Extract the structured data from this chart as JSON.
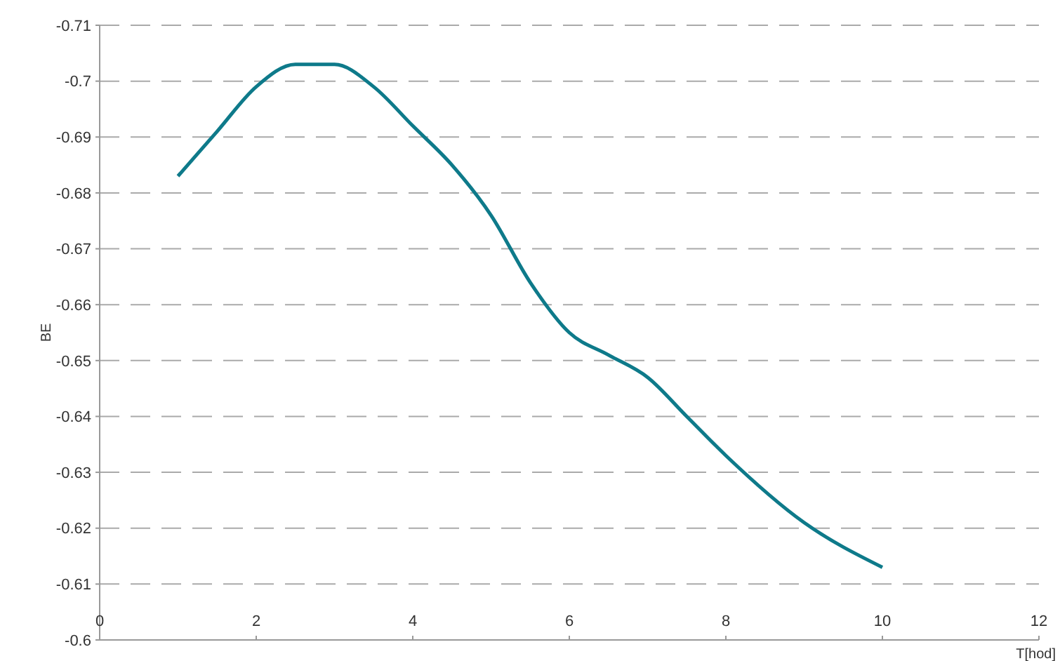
{
  "chart_data": {
    "type": "line",
    "xlabel": "T[hod]",
    "ylabel": "BE",
    "x": [
      1,
      1.5,
      2,
      2.5,
      3,
      3.5,
      4,
      4.5,
      5,
      5.5,
      6,
      6.5,
      7,
      7.5,
      8,
      9,
      10
    ],
    "series": [
      {
        "color": "#0e7a8a",
        "values": [
          -0.683,
          -0.691,
          -0.699,
          -0.703,
          -0.703,
          -0.699,
          -0.692,
          -0.685,
          -0.676,
          -0.664,
          -0.655,
          -0.651,
          -0.647,
          -0.64,
          -0.633,
          -0.621,
          -0.613
        ]
      }
    ],
    "xlim": [
      0,
      12
    ],
    "xticks": [
      0,
      2,
      4,
      6,
      8,
      10,
      12
    ],
    "ylim": [
      -0.6,
      -0.71
    ],
    "yticks": [
      -0.6,
      -0.61,
      -0.62,
      -0.63,
      -0.64,
      -0.65,
      -0.66,
      -0.67,
      -0.68,
      -0.69,
      -0.7,
      -0.71
    ],
    "grid": "y",
    "line_style": "solid",
    "marker": "none"
  }
}
